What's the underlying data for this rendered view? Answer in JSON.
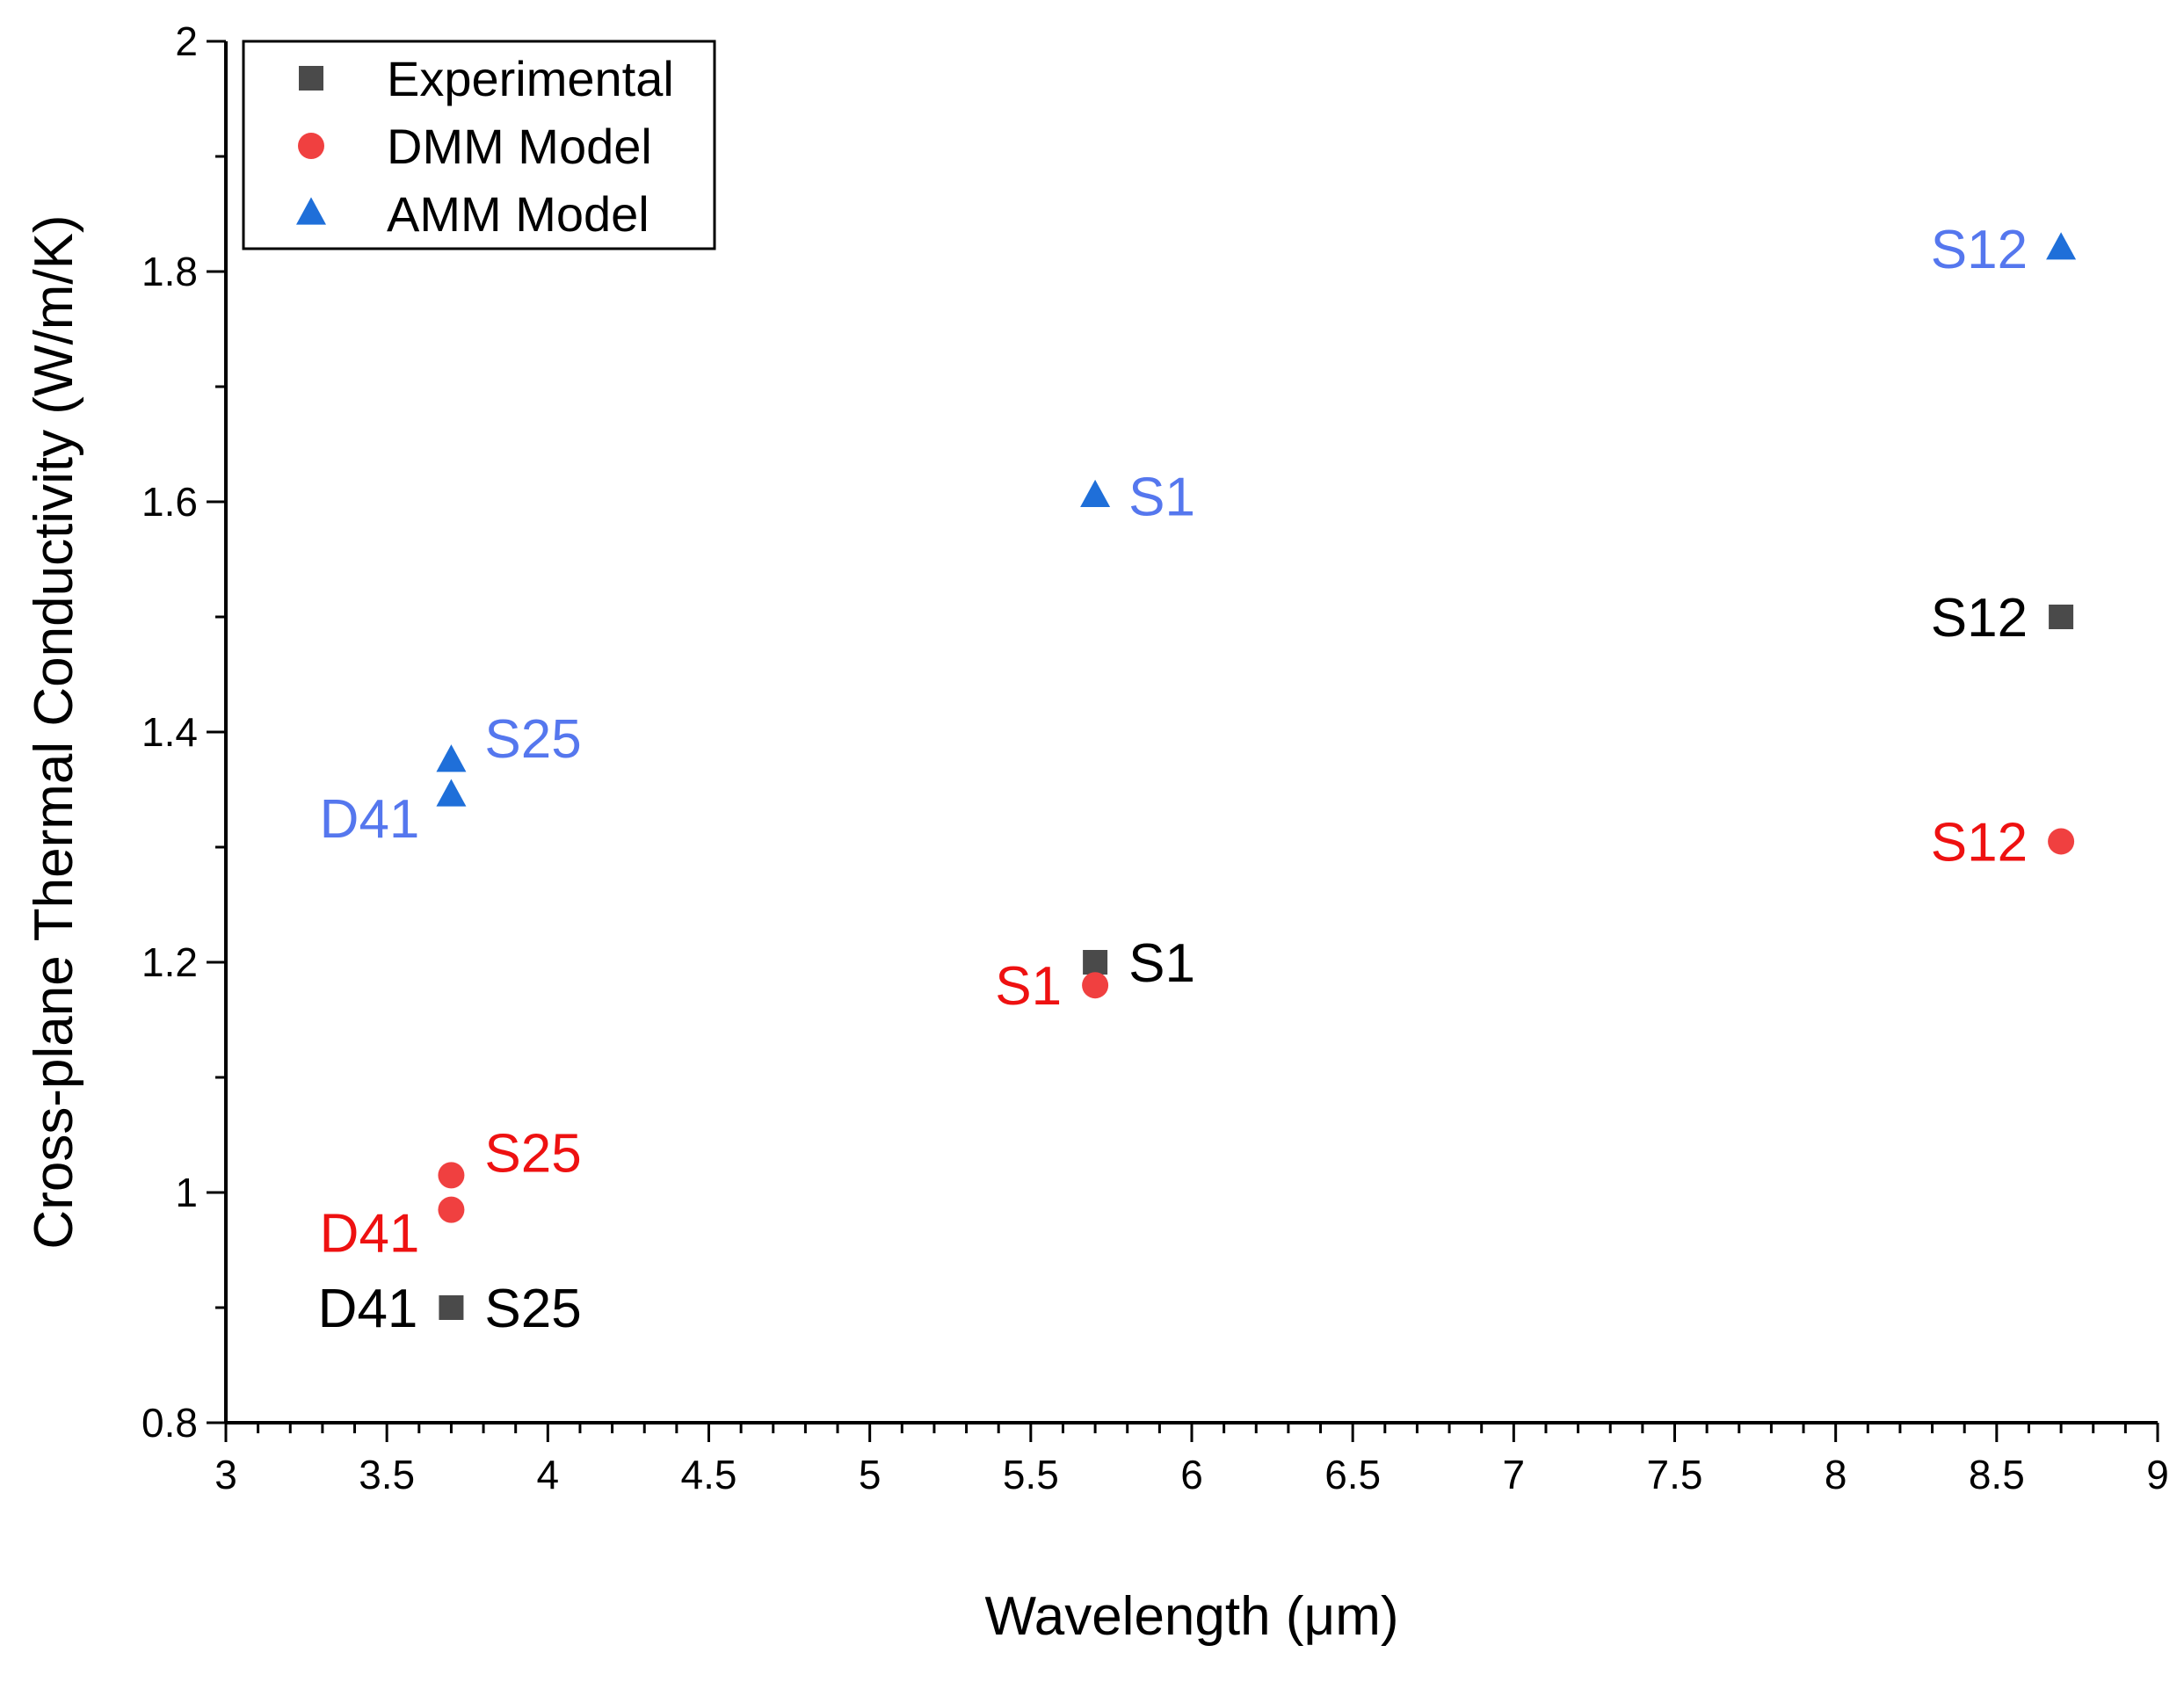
{
  "chart_data": {
    "type": "scatter",
    "title": "",
    "xlabel": "Wavelength (μm)",
    "ylabel": "Cross-plane Thermal Conductivity (W/m/K)",
    "xlim": [
      3,
      9
    ],
    "ylim": [
      0.8,
      2.0
    ],
    "x_ticks": [
      3,
      3.5,
      4,
      4.5,
      5,
      5.5,
      6,
      6.5,
      7,
      7.5,
      8,
      8.5,
      9
    ],
    "x_tick_labels": [
      "3",
      "3.5",
      "4",
      "4.5",
      "5",
      "5.5",
      "6",
      "6.5",
      "7",
      "7.5",
      "8",
      "8.5",
      "9"
    ],
    "y_ticks": [
      0.8,
      1.0,
      1.2,
      1.4,
      1.6,
      1.8,
      2.0
    ],
    "y_tick_labels": [
      "0.8",
      "1",
      "1.2",
      "1.4",
      "1.6",
      "1.8",
      "2"
    ],
    "legend_position": "top-left",
    "series": [
      {
        "name": "Experimental",
        "marker": "square",
        "color": "#4a4a4a",
        "label_color": "#000000",
        "points": [
          {
            "x": 3.7,
            "y": 0.9,
            "labels": [
              {
                "text": "D41",
                "side": "left"
              },
              {
                "text": "S25",
                "side": "right"
              }
            ]
          },
          {
            "x": 5.7,
            "y": 1.2,
            "labels": [
              {
                "text": "S1",
                "side": "right"
              }
            ]
          },
          {
            "x": 8.7,
            "y": 1.5,
            "labels": [
              {
                "text": "S12",
                "side": "left"
              }
            ]
          }
        ]
      },
      {
        "name": "DMM Model",
        "marker": "circle",
        "color": "#f04040",
        "label_color": "#ee1111",
        "points": [
          {
            "x": 3.7,
            "y": 1.015,
            "labels": [
              {
                "text": "S25",
                "side": "upper-right"
              }
            ]
          },
          {
            "x": 3.7,
            "y": 0.985,
            "labels": [
              {
                "text": "D41",
                "side": "lower-left"
              }
            ]
          },
          {
            "x": 5.7,
            "y": 1.18,
            "labels": [
              {
                "text": "S1",
                "side": "left"
              }
            ]
          },
          {
            "x": 8.7,
            "y": 1.305,
            "labels": [
              {
                "text": "S12",
                "side": "left"
              }
            ]
          }
        ]
      },
      {
        "name": "AMM Model",
        "marker": "triangle",
        "color": "#1f6fd9",
        "label_color": "#5577ee",
        "points": [
          {
            "x": 3.7,
            "y": 1.375,
            "labels": [
              {
                "text": "S25",
                "side": "upper-right"
              }
            ]
          },
          {
            "x": 3.7,
            "y": 1.345,
            "labels": [
              {
                "text": "D41",
                "side": "lower-left"
              }
            ]
          },
          {
            "x": 5.7,
            "y": 1.605,
            "labels": [
              {
                "text": "S1",
                "side": "right"
              }
            ]
          },
          {
            "x": 8.7,
            "y": 1.82,
            "labels": [
              {
                "text": "S12",
                "side": "left"
              }
            ]
          }
        ]
      }
    ]
  }
}
